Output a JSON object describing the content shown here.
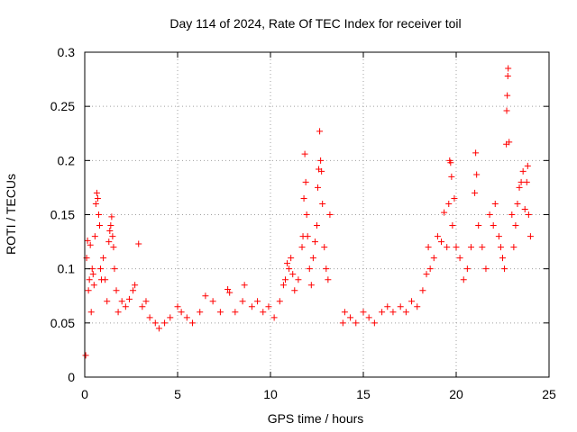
{
  "chart_data": {
    "type": "scatter",
    "title": "Day 114 of 2024, Rate Of TEC Index for receiver toil",
    "xlabel": "GPS time / hours",
    "ylabel": "ROTI / TECUs",
    "xlim": [
      0,
      25
    ],
    "ylim": [
      0,
      0.3
    ],
    "xticks": [
      0,
      5,
      10,
      15,
      20,
      25
    ],
    "xtick_labels": [
      "0",
      "5",
      "10",
      "15",
      "20",
      "25"
    ],
    "yticks": [
      0,
      0.05,
      0.1,
      0.15,
      0.2,
      0.25,
      0.3
    ],
    "ytick_labels": [
      "0",
      "0.05",
      "0.1",
      "0.15",
      "0.2",
      "0.25",
      "0.3"
    ],
    "grid": true,
    "marker": "plus",
    "color": "#ff0000",
    "series": [
      {
        "name": "ROTI",
        "points": [
          [
            0.05,
            0.02
          ],
          [
            0.1,
            0.11
          ],
          [
            0.15,
            0.126
          ],
          [
            0.2,
            0.08
          ],
          [
            0.25,
            0.09
          ],
          [
            0.3,
            0.122
          ],
          [
            0.35,
            0.06
          ],
          [
            0.4,
            0.1
          ],
          [
            0.45,
            0.095
          ],
          [
            0.5,
            0.085
          ],
          [
            0.55,
            0.13
          ],
          [
            0.6,
            0.16
          ],
          [
            0.65,
            0.17
          ],
          [
            0.7,
            0.165
          ],
          [
            0.75,
            0.15
          ],
          [
            0.8,
            0.14
          ],
          [
            0.85,
            0.1
          ],
          [
            0.9,
            0.09
          ],
          [
            1.0,
            0.11
          ],
          [
            1.1,
            0.09
          ],
          [
            1.2,
            0.07
          ],
          [
            1.3,
            0.125
          ],
          [
            1.35,
            0.135
          ],
          [
            1.4,
            0.14
          ],
          [
            1.45,
            0.148
          ],
          [
            1.5,
            0.13
          ],
          [
            1.55,
            0.12
          ],
          [
            1.6,
            0.1
          ],
          [
            1.7,
            0.08
          ],
          [
            1.8,
            0.06
          ],
          [
            2.0,
            0.07
          ],
          [
            2.2,
            0.065
          ],
          [
            2.4,
            0.072
          ],
          [
            2.6,
            0.08
          ],
          [
            2.7,
            0.085
          ],
          [
            2.9,
            0.123
          ],
          [
            3.1,
            0.065
          ],
          [
            3.3,
            0.07
          ],
          [
            3.5,
            0.055
          ],
          [
            3.8,
            0.05
          ],
          [
            4.0,
            0.045
          ],
          [
            4.3,
            0.05
          ],
          [
            4.6,
            0.055
          ],
          [
            5.0,
            0.065
          ],
          [
            5.2,
            0.06
          ],
          [
            5.5,
            0.055
          ],
          [
            5.8,
            0.05
          ],
          [
            6.2,
            0.06
          ],
          [
            6.5,
            0.075
          ],
          [
            6.9,
            0.07
          ],
          [
            7.3,
            0.06
          ],
          [
            7.7,
            0.081
          ],
          [
            7.8,
            0.078
          ],
          [
            8.1,
            0.06
          ],
          [
            8.5,
            0.07
          ],
          [
            8.6,
            0.085
          ],
          [
            9.0,
            0.065
          ],
          [
            9.3,
            0.07
          ],
          [
            9.6,
            0.06
          ],
          [
            9.9,
            0.065
          ],
          [
            10.2,
            0.055
          ],
          [
            10.5,
            0.07
          ],
          [
            10.7,
            0.085
          ],
          [
            10.8,
            0.09
          ],
          [
            10.9,
            0.105
          ],
          [
            11.0,
            0.1
          ],
          [
            11.1,
            0.11
          ],
          [
            11.2,
            0.095
          ],
          [
            11.3,
            0.08
          ],
          [
            11.5,
            0.09
          ],
          [
            11.7,
            0.12
          ],
          [
            11.75,
            0.13
          ],
          [
            11.8,
            0.165
          ],
          [
            11.85,
            0.206
          ],
          [
            11.9,
            0.18
          ],
          [
            11.95,
            0.15
          ],
          [
            12.0,
            0.13
          ],
          [
            12.1,
            0.1
          ],
          [
            12.2,
            0.085
          ],
          [
            12.3,
            0.11
          ],
          [
            12.4,
            0.125
          ],
          [
            12.5,
            0.14
          ],
          [
            12.55,
            0.175
          ],
          [
            12.6,
            0.192
          ],
          [
            12.65,
            0.227
          ],
          [
            12.7,
            0.2
          ],
          [
            12.75,
            0.19
          ],
          [
            12.8,
            0.16
          ],
          [
            12.9,
            0.12
          ],
          [
            13.0,
            0.1
          ],
          [
            13.1,
            0.09
          ],
          [
            13.2,
            0.15
          ],
          [
            13.9,
            0.05
          ],
          [
            14.0,
            0.06
          ],
          [
            14.3,
            0.055
          ],
          [
            14.6,
            0.05
          ],
          [
            15.0,
            0.06
          ],
          [
            15.3,
            0.055
          ],
          [
            15.6,
            0.05
          ],
          [
            16.0,
            0.06
          ],
          [
            16.3,
            0.065
          ],
          [
            16.6,
            0.06
          ],
          [
            17.0,
            0.065
          ],
          [
            17.3,
            0.06
          ],
          [
            17.6,
            0.07
          ],
          [
            17.9,
            0.065
          ],
          [
            18.2,
            0.08
          ],
          [
            18.4,
            0.095
          ],
          [
            18.5,
            0.12
          ],
          [
            18.6,
            0.1
          ],
          [
            18.8,
            0.11
          ],
          [
            19.0,
            0.13
          ],
          [
            19.2,
            0.125
          ],
          [
            19.35,
            0.152
          ],
          [
            19.5,
            0.12
          ],
          [
            19.6,
            0.16
          ],
          [
            19.65,
            0.2
          ],
          [
            19.7,
            0.198
          ],
          [
            19.75,
            0.185
          ],
          [
            19.8,
            0.14
          ],
          [
            19.9,
            0.165
          ],
          [
            20.0,
            0.12
          ],
          [
            20.2,
            0.11
          ],
          [
            20.4,
            0.09
          ],
          [
            20.6,
            0.1
          ],
          [
            20.8,
            0.12
          ],
          [
            21.0,
            0.17
          ],
          [
            21.05,
            0.207
          ],
          [
            21.1,
            0.187
          ],
          [
            21.2,
            0.14
          ],
          [
            21.4,
            0.12
          ],
          [
            21.6,
            0.1
          ],
          [
            21.8,
            0.15
          ],
          [
            22.0,
            0.14
          ],
          [
            22.1,
            0.16
          ],
          [
            22.3,
            0.13
          ],
          [
            22.4,
            0.12
          ],
          [
            22.5,
            0.11
          ],
          [
            22.6,
            0.1
          ],
          [
            22.7,
            0.215
          ],
          [
            22.72,
            0.246
          ],
          [
            22.75,
            0.26
          ],
          [
            22.78,
            0.278
          ],
          [
            22.8,
            0.285
          ],
          [
            22.85,
            0.217
          ],
          [
            23.0,
            0.15
          ],
          [
            23.1,
            0.12
          ],
          [
            23.2,
            0.14
          ],
          [
            23.3,
            0.16
          ],
          [
            23.4,
            0.175
          ],
          [
            23.5,
            0.18
          ],
          [
            23.6,
            0.19
          ],
          [
            23.7,
            0.155
          ],
          [
            23.8,
            0.18
          ],
          [
            23.85,
            0.195
          ],
          [
            23.9,
            0.15
          ],
          [
            24.0,
            0.13
          ]
        ]
      }
    ]
  }
}
